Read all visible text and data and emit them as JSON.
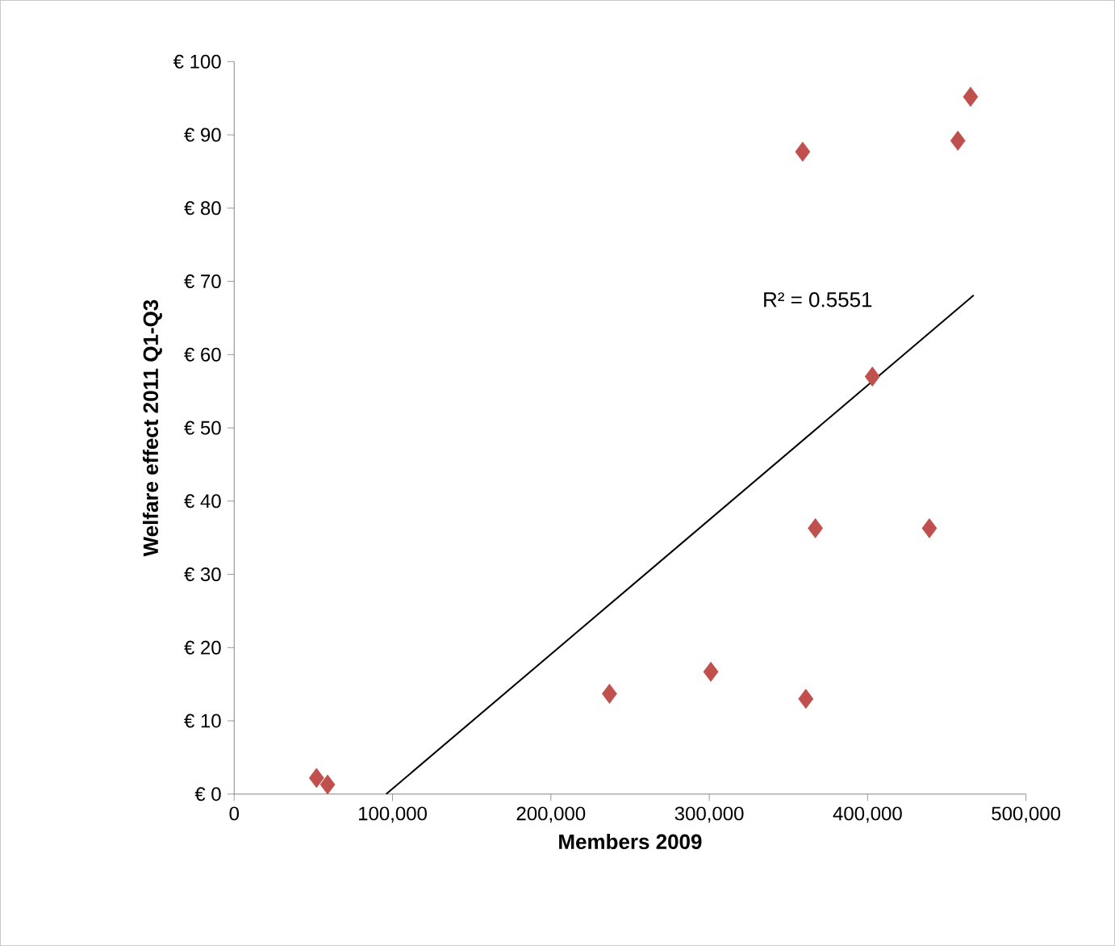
{
  "chart_data": {
    "type": "scatter",
    "xlabel": "Members 2009",
    "ylabel": "Welfare effect 2011 Q1-Q3",
    "xlim": [
      0,
      500000
    ],
    "ylim": [
      0,
      100
    ],
    "xticks": [
      {
        "value": 0,
        "label": "0"
      },
      {
        "value": 100000,
        "label": "100,000"
      },
      {
        "value": 200000,
        "label": "200,000"
      },
      {
        "value": 300000,
        "label": "300,000"
      },
      {
        "value": 400000,
        "label": "400,000"
      },
      {
        "value": 500000,
        "label": "500,000"
      }
    ],
    "yticks": [
      {
        "value": 0,
        "label": "€ 0"
      },
      {
        "value": 10,
        "label": "€ 10"
      },
      {
        "value": 20,
        "label": "€ 20"
      },
      {
        "value": 30,
        "label": "€ 30"
      },
      {
        "value": 40,
        "label": "€ 40"
      },
      {
        "value": 50,
        "label": "€ 50"
      },
      {
        "value": 60,
        "label": "€ 60"
      },
      {
        "value": 70,
        "label": "€ 70"
      },
      {
        "value": 80,
        "label": "€ 80"
      },
      {
        "value": 90,
        "label": "€ 90"
      },
      {
        "value": 100,
        "label": "€ 100"
      }
    ],
    "grid": false,
    "series": [
      {
        "color": "#c0504d",
        "marker": "diamond",
        "x": [
          52000,
          59000,
          237000,
          301000,
          361000,
          359000,
          367000,
          403000,
          439000,
          457000,
          465000
        ],
        "values": [
          2.2,
          1.3,
          13.7,
          16.7,
          13.0,
          87.7,
          36.3,
          57.0,
          36.3,
          89.2,
          95.2
        ]
      },
      {
        "type": "line",
        "color": "#000000",
        "marker": "none",
        "line_style": "solid",
        "x": [
          96000,
          467000
        ],
        "values": [
          0,
          68.1
        ]
      }
    ],
    "annotations": [
      "R² = 0.5551"
    ]
  }
}
